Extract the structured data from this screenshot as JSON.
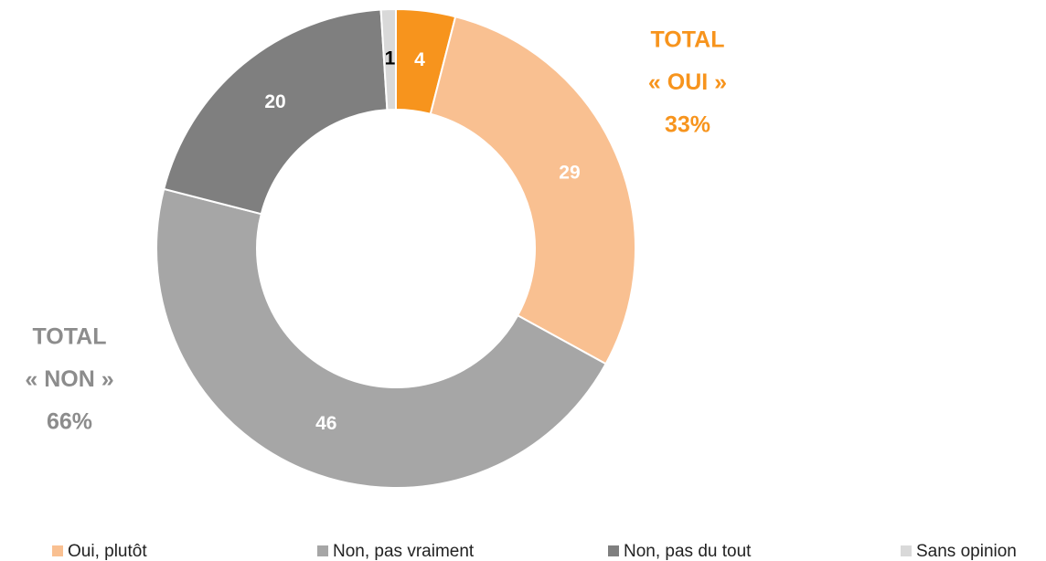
{
  "chart_data": {
    "type": "donut",
    "categories": [
      null,
      "Oui, plutôt",
      "Non, pas vraiment",
      "Non, pas du tout",
      "Sans opinion"
    ],
    "values": [
      4,
      29,
      46,
      20,
      1
    ],
    "colors": [
      "#f7941d",
      "#f9c091",
      "#a6a6a6",
      "#7f7f7f",
      "#d9d9d9"
    ],
    "label_colors": [
      "#ffffff",
      "#ffffff",
      "#ffffff",
      "#ffffff",
      "#000000"
    ],
    "legend": "bottom",
    "annotations": [
      {
        "lines": [
          "TOTAL",
          "« OUI »",
          "33%"
        ],
        "color": "#f7941d"
      },
      {
        "lines": [
          "TOTAL",
          "« NON »",
          "66%"
        ],
        "color": "#8c8c8c"
      }
    ]
  }
}
